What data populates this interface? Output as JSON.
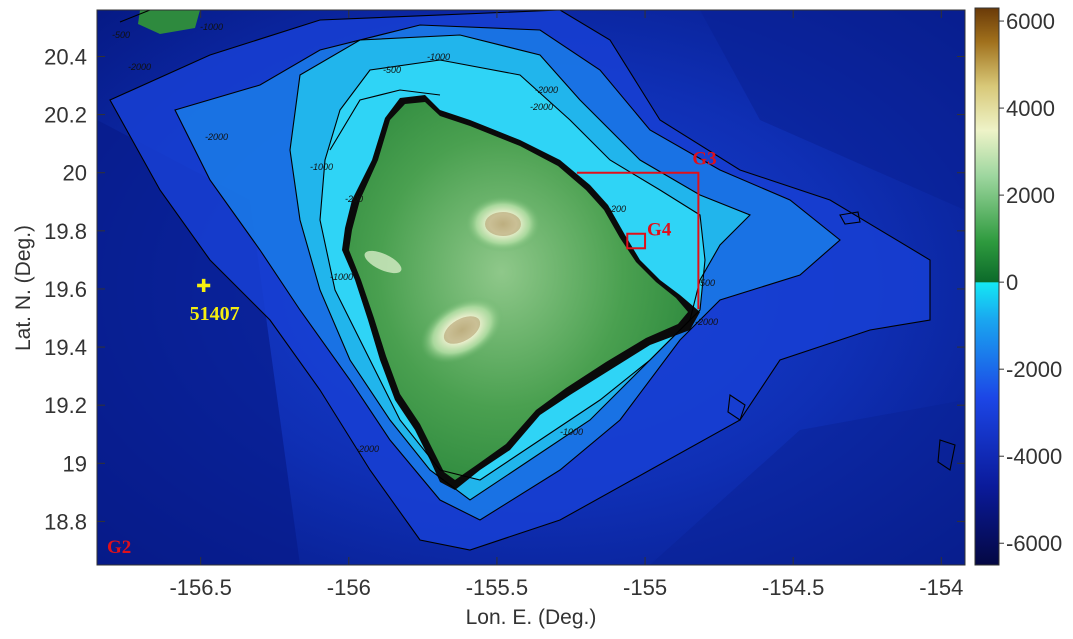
{
  "axes": {
    "x_label": "Lon. E. (Deg.)",
    "y_label": "Lat. N. (Deg.)",
    "x_range": [
      -156.85,
      -153.92
    ],
    "y_range": [
      18.65,
      20.56
    ],
    "x_ticks": [
      {
        "value": -156.5,
        "label": "-156.5"
      },
      {
        "value": -156,
        "label": "-156"
      },
      {
        "value": -155.5,
        "label": "-155.5"
      },
      {
        "value": -155,
        "label": "-155"
      },
      {
        "value": -154.5,
        "label": "-154.5"
      },
      {
        "value": -154,
        "label": "-154"
      }
    ],
    "y_ticks": [
      {
        "value": 20.4,
        "label": "20.4"
      },
      {
        "value": 20.2,
        "label": "20.2"
      },
      {
        "value": 20,
        "label": "20"
      },
      {
        "value": 19.8,
        "label": "19.8"
      },
      {
        "value": 19.6,
        "label": "19.6"
      },
      {
        "value": 19.4,
        "label": "19.4"
      },
      {
        "value": 19.2,
        "label": "19.2"
      },
      {
        "value": 19,
        "label": "19"
      },
      {
        "value": 18.8,
        "label": "18.8"
      }
    ]
  },
  "colorbar": {
    "range": [
      -6500,
      6300
    ],
    "ticks": [
      {
        "value": 6000,
        "label": "6000"
      },
      {
        "value": 4000,
        "label": "4000"
      },
      {
        "value": 2000,
        "label": "2000"
      },
      {
        "value": 0,
        "label": "0"
      },
      {
        "value": -2000,
        "label": "-2000"
      },
      {
        "value": -4000,
        "label": "-4000"
      },
      {
        "value": -6000,
        "label": "-6000"
      }
    ]
  },
  "grids": {
    "g2": {
      "label": "G2"
    },
    "g3": {
      "label": "G3",
      "lon_min": -155.23,
      "lon_max": -154.82,
      "lat_min": 19.53,
      "lat_max": 20.0
    },
    "g4": {
      "label": "G4",
      "lon_min": -155.06,
      "lon_max": -155.0,
      "lat_min": 19.74,
      "lat_max": 19.79
    }
  },
  "station": {
    "label": "51407",
    "lon": -156.49,
    "lat": 19.61
  },
  "contour_labels": [
    "-500",
    "-1000",
    "-2000",
    "-500",
    "-1000",
    "-2000",
    "-2000",
    "-1000",
    "-500",
    "-200",
    "-2000",
    "-1000",
    "-2000",
    "-1000",
    "-200",
    "-2000"
  ],
  "colors": {
    "deep_ocean": "#050f6e",
    "mid_ocean": "#1a3fd6",
    "shelf": "#18d8f0",
    "lowland": "#2e8a3e",
    "highland": "#f2f0c8",
    "annotation": "#e0101a",
    "station": "#f5ee10"
  }
}
